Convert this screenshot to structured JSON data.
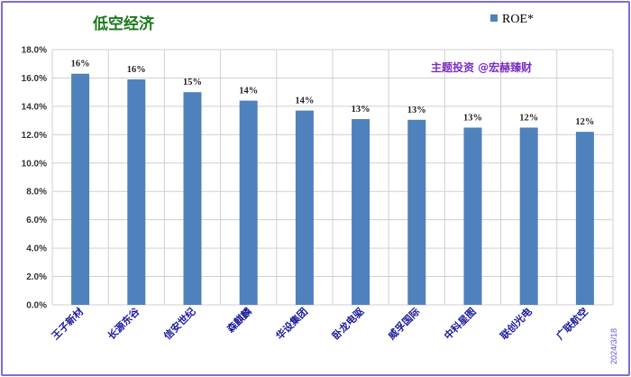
{
  "chart_data": {
    "type": "bar",
    "title": "低空经济",
    "categories": [
      "王子新材",
      "长源东谷",
      "信安世纪",
      "森麒麟",
      "华设集团",
      "卧龙电驱",
      "威孚国际",
      "中科星图",
      "联创光电",
      "广联航空"
    ],
    "series": [
      {
        "name": "ROE*",
        "values": [
          16.3,
          15.9,
          15.0,
          14.4,
          13.7,
          13.1,
          13.05,
          12.5,
          12.5,
          12.2
        ]
      }
    ],
    "data_labels": [
      "16%",
      "16%",
      "15%",
      "14%",
      "14%",
      "13%",
      "13%",
      "13%",
      "12%",
      "12%"
    ],
    "y_ticks": [
      "0.0%",
      "2.0%",
      "4.0%",
      "6.0%",
      "8.0%",
      "10.0%",
      "12.0%",
      "14.0%",
      "16.0%",
      "18.0%"
    ],
    "ylim": [
      0,
      18
    ],
    "grid": true,
    "legend_position": "top-right",
    "watermark": "主题投资 @宏赫臻财",
    "date_note": "2024/3/18",
    "colors": {
      "bar": "#4f81bd",
      "grid": "#d0d0d0",
      "title": "#1a7a1a",
      "category": "#1a1a99",
      "watermark": "#7b2fbf"
    }
  }
}
